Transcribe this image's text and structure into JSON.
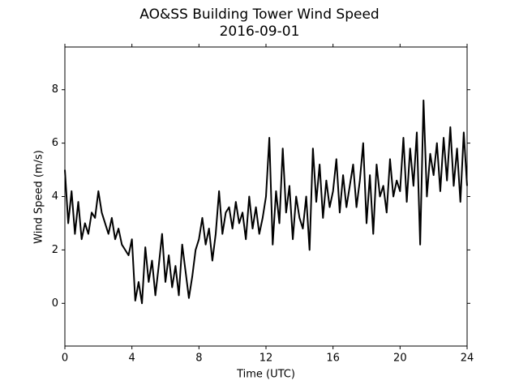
{
  "chart_data": {
    "type": "line",
    "title": "AO&SS Building Tower Wind Speed",
    "subtitle": "2016-09-01",
    "x_label": "Time (UTC)",
    "y_label": "Wind Speed (m/s)",
    "x": [
      0,
      0.2,
      0.4,
      0.6,
      0.8,
      1,
      1.2,
      1.4,
      1.6,
      1.8,
      2,
      2.2,
      2.4,
      2.6,
      2.8,
      3,
      3.2,
      3.4,
      3.6,
      3.8,
      4,
      4.2,
      4.4,
      4.6,
      4.8,
      5,
      5.2,
      5.4,
      5.6,
      5.8,
      6,
      6.2,
      6.4,
      6.6,
      6.8,
      7,
      7.2,
      7.4,
      7.6,
      7.8,
      8,
      8.2,
      8.4,
      8.6,
      8.8,
      9,
      9.2,
      9.4,
      9.6,
      9.8,
      10,
      10.2,
      10.4,
      10.6,
      10.8,
      11,
      11.2,
      11.4,
      11.6,
      11.8,
      12,
      12.2,
      12.4,
      12.6,
      12.8,
      13,
      13.2,
      13.4,
      13.6,
      13.8,
      14,
      14.2,
      14.4,
      14.6,
      14.8,
      15,
      15.2,
      15.4,
      15.6,
      15.8,
      16,
      16.2,
      16.4,
      16.6,
      16.8,
      17,
      17.2,
      17.4,
      17.6,
      17.8,
      18,
      18.2,
      18.4,
      18.6,
      18.8,
      19,
      19.2,
      19.4,
      19.6,
      19.8,
      20,
      20.2,
      20.4,
      20.6,
      20.8,
      21,
      21.2,
      21.4,
      21.6,
      21.8,
      22,
      22.2,
      22.4,
      22.6,
      22.8,
      23,
      23.2,
      23.4,
      23.6,
      23.8,
      24
    ],
    "series": [
      {
        "name": "Wind Speed",
        "color": "#000000",
        "values": [
          5.0,
          3.0,
          4.2,
          2.6,
          3.8,
          2.4,
          3.0,
          2.6,
          3.4,
          3.2,
          4.2,
          3.4,
          3.0,
          2.6,
          3.2,
          2.4,
          2.8,
          2.2,
          2.0,
          1.8,
          2.4,
          0.1,
          0.8,
          0.0,
          2.1,
          0.8,
          1.6,
          0.3,
          1.4,
          2.6,
          0.8,
          1.8,
          0.6,
          1.4,
          0.3,
          2.2,
          1.2,
          0.2,
          1.0,
          2.0,
          2.4,
          3.2,
          2.2,
          2.8,
          1.6,
          2.6,
          4.2,
          2.6,
          3.4,
          3.6,
          2.8,
          3.8,
          3.0,
          3.4,
          2.4,
          4.0,
          2.8,
          3.6,
          2.6,
          3.2,
          4.0,
          6.2,
          2.2,
          4.2,
          3.0,
          5.8,
          3.4,
          4.4,
          2.4,
          4.0,
          3.2,
          2.8,
          4.0,
          2.0,
          5.8,
          3.8,
          5.2,
          3.2,
          4.6,
          3.6,
          4.2,
          5.4,
          3.4,
          4.8,
          3.6,
          4.4,
          5.2,
          3.6,
          4.6,
          6.0,
          3.0,
          4.8,
          2.6,
          5.2,
          4.0,
          4.4,
          3.4,
          5.4,
          4.0,
          4.6,
          4.2,
          6.2,
          3.8,
          5.8,
          4.4,
          6.4,
          2.2,
          7.6,
          4.0,
          5.6,
          4.8,
          6.0,
          4.2,
          6.2,
          4.6,
          6.6,
          4.4,
          5.8,
          3.8,
          6.4,
          4.4
        ]
      }
    ],
    "xlim": [
      0,
      24
    ],
    "xticks": [
      0,
      4,
      8,
      12,
      16,
      20,
      24
    ],
    "ylim": [
      -1.6,
      9.6
    ],
    "yticks": [
      0,
      2,
      4,
      6,
      8
    ]
  }
}
